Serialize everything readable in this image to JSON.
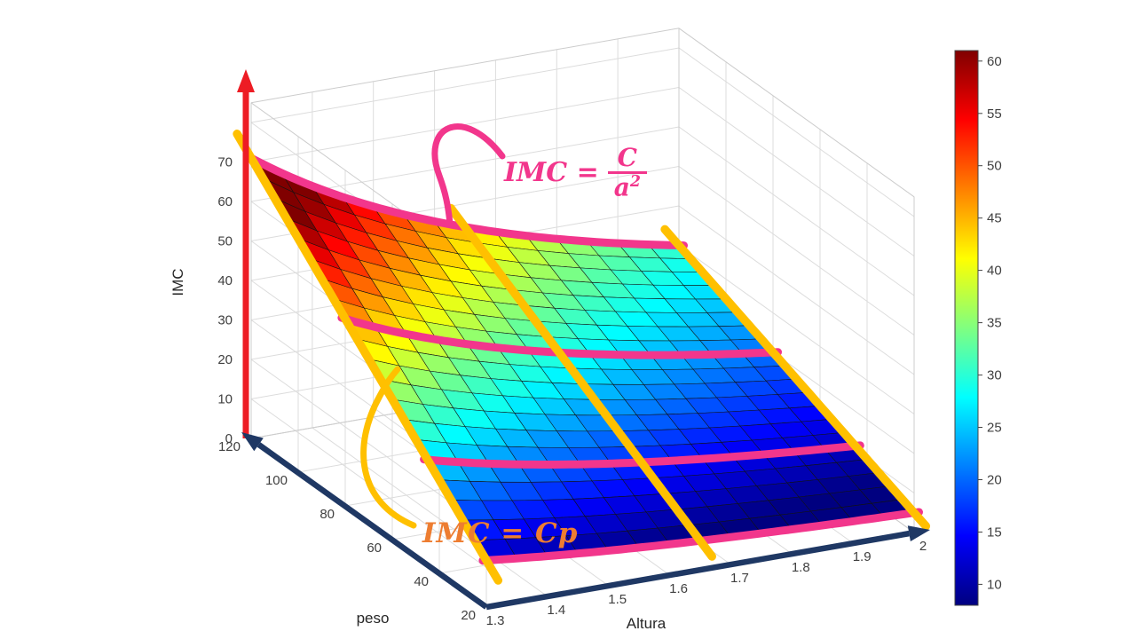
{
  "chart_data": {
    "type": "surface3d",
    "title": "",
    "z_function": "IMC = peso / Altura^2",
    "x_axis": {
      "label": "Altura",
      "min": 1.3,
      "max": 2,
      "ticks": [
        "1.3",
        "1.4",
        "1.5",
        "1.6",
        "1.7",
        "1.8",
        "1.9",
        "2"
      ],
      "arrow_color": "#1F3864"
    },
    "y_axis": {
      "label": "peso",
      "min": 20,
      "max": 120,
      "ticks": [
        20,
        40,
        60,
        80,
        100,
        120
      ],
      "arrow_color": "#1F3864"
    },
    "z_axis": {
      "label": "IMC",
      "min": 0,
      "max": 70,
      "ticks": [
        0,
        10,
        20,
        30,
        40,
        50,
        60,
        70
      ],
      "arrow_color": "#ED1C24"
    },
    "surface": {
      "x_step": 0.05,
      "y_step": 5,
      "colormap": "jet",
      "mesh_color": "#121212",
      "corner_values": {
        "altura1.3_peso120": 71.0,
        "altura2_peso120": 30.0,
        "altura1.3_peso20": 11.8,
        "altura2_peso20": 5.0
      }
    },
    "color_axis": {
      "min": 8,
      "max": 61
    },
    "colorbar": {
      "ticks": [
        60,
        55,
        50,
        45,
        40,
        35,
        30,
        25,
        20,
        15,
        10
      ]
    },
    "highlights": {
      "constant_peso_curves": {
        "color": "#F2368C",
        "peso_values": [
          120,
          80,
          45,
          20
        ]
      },
      "constant_altura_lines": {
        "color": "#FFC000",
        "altura_values": [
          1.3,
          1.65,
          2.0
        ]
      }
    },
    "annotations": {
      "pink": {
        "lhs": "IMC =",
        "numerator": "C",
        "den_base": "a",
        "den_exp": "2",
        "color": "#F2368C"
      },
      "orange": {
        "text": "IMC = Cp",
        "color": "#ED7D31"
      }
    },
    "grid": {
      "color": "#DCDCDC",
      "edge_color": "#CCCCCC",
      "wall_z_max": 85
    },
    "tick_label_color": "#404040",
    "axis_label_color": "#262626"
  }
}
